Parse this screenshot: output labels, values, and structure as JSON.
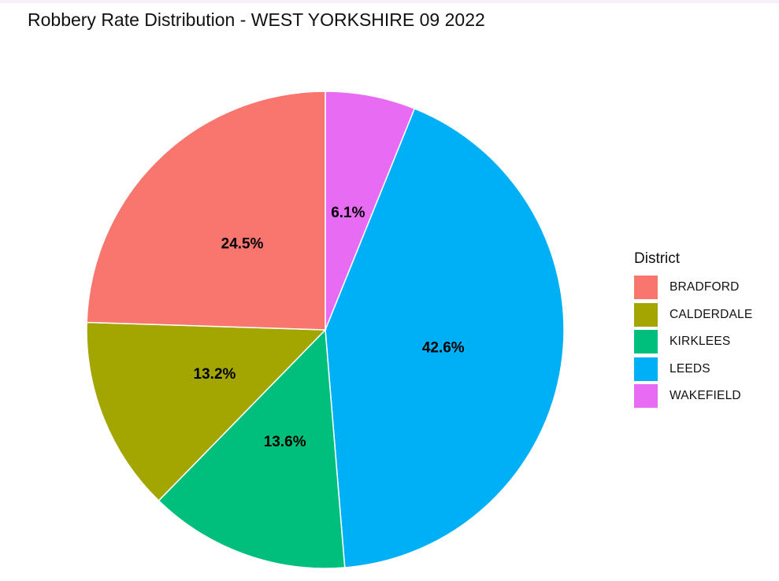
{
  "chart_data": {
    "type": "pie",
    "title": "Robbery Rate Distribution - WEST YORKSHIRE 09 2022",
    "legend_title": "District",
    "legend_position": "right",
    "slices": [
      {
        "label": "BRADFORD",
        "value": 24.5,
        "text": "24.5%",
        "color": "#F8766D"
      },
      {
        "label": "CALDERDALE",
        "value": 13.2,
        "text": "13.2%",
        "color": "#A3A500"
      },
      {
        "label": "KIRKLEES",
        "value": 13.6,
        "text": "13.6%",
        "color": "#00BF7D"
      },
      {
        "label": "LEEDS",
        "value": 42.6,
        "text": "42.6%",
        "color": "#00B0F6"
      },
      {
        "label": "WAKEFIELD",
        "value": 6.1,
        "text": "6.1%",
        "color": "#E76BF3"
      }
    ]
  }
}
